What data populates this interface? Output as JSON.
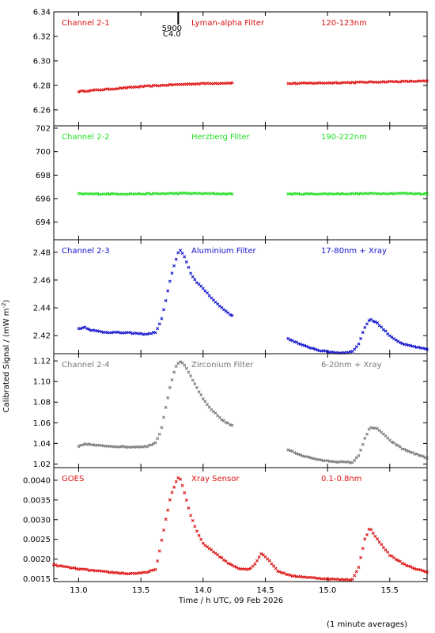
{
  "x_axis": {
    "label": "Time / h UTC, 09 Feb 2026",
    "range": [
      12.8,
      15.8
    ],
    "ticks": [
      13.0,
      13.5,
      14.0,
      14.5,
      15.0,
      15.5
    ],
    "tick_labels": [
      "13.0",
      "13.5",
      "14.0",
      "14.5",
      "15.0",
      "15.5"
    ]
  },
  "y_axis_title": "Calibrated Signal / (mW m",
  "y_axis_title_sup": "-2",
  "y_axis_title_close": ")",
  "footnote": "(1 minute averages)",
  "event_marker": {
    "time": 13.8,
    "label1": "5900",
    "label2": "C4.0"
  },
  "panels": [
    {
      "name": "Channel 2-1",
      "filter": "Lyman-alpha Filter",
      "band": "120-123nm",
      "color": "#dd1111",
      "ylim": [
        6.247,
        6.34
      ],
      "ticks": [
        6.26,
        6.28,
        6.3,
        6.32,
        6.34
      ],
      "tick_labels": [
        "6.26",
        "6.28",
        "6.30",
        "6.32",
        "6.34"
      ],
      "key": "ch21"
    },
    {
      "name": "Channel 2-2",
      "filter": "Herzberg Filter",
      "band": "190-222nm",
      "color": "#22dd22",
      "ylim": [
        692.5,
        702.2
      ],
      "ticks": [
        694,
        696,
        698,
        700,
        702
      ],
      "tick_labels": [
        "694",
        "696",
        "698",
        "700",
        "702"
      ],
      "key": "ch22"
    },
    {
      "name": "Channel 2-3",
      "filter": "Aluminium Filter",
      "band": "17-80nm + Xray",
      "color": "#1111cc",
      "ylim": [
        2.407,
        2.489
      ],
      "ticks": [
        2.42,
        2.44,
        2.46,
        2.48
      ],
      "tick_labels": [
        "2.42",
        "2.44",
        "2.46",
        "2.48"
      ],
      "key": "ch23"
    },
    {
      "name": "Channel 2-4",
      "filter": "Zirconium Filter",
      "band": "6-20nm + Xray",
      "color": "#777777",
      "ylim": [
        1.0165,
        1.127
      ],
      "ticks": [
        1.02,
        1.04,
        1.06,
        1.08,
        1.1,
        1.12
      ],
      "tick_labels": [
        "1.02",
        "1.04",
        "1.06",
        "1.08",
        "1.10",
        "1.12"
      ],
      "key": "ch24"
    },
    {
      "name": "GOES",
      "filter": "Xray Sensor",
      "band": "0.1-0.8nm",
      "color": "#dd1111",
      "ylim": [
        0.00143,
        0.00432
      ],
      "ticks": [
        0.0015,
        0.002,
        0.0025,
        0.003,
        0.0035,
        0.004
      ],
      "tick_labels": [
        "0.0015",
        "0.0020",
        "0.0025",
        "0.0030",
        "0.0035",
        "0.0040"
      ],
      "key": "goes"
    }
  ],
  "chart_data": {
    "type": "scatter",
    "xlabel": "Time / h UTC, 09 Feb 2026",
    "xlim": [
      12.8,
      15.8
    ],
    "gap_hours": [
      14.25,
      14.68
    ],
    "series": [
      {
        "name": "Channel 2-1",
        "key": "ch21",
        "x_range": [
          13.0,
          15.8
        ],
        "points": [
          [
            13.0,
            6.275
          ],
          [
            13.25,
            6.277
          ],
          [
            13.5,
            6.279
          ],
          [
            13.75,
            6.2805
          ],
          [
            14.0,
            6.2815
          ],
          [
            14.25,
            6.282
          ],
          [
            14.68,
            6.2815
          ],
          [
            15.0,
            6.282
          ],
          [
            15.25,
            6.2825
          ],
          [
            15.5,
            6.283
          ],
          [
            15.8,
            6.2835
          ]
        ]
      },
      {
        "name": "Channel 2-2",
        "key": "ch22",
        "x_range": [
          13.0,
          15.8
        ],
        "points": [
          [
            13.0,
            696.4
          ],
          [
            13.5,
            696.4
          ],
          [
            13.85,
            696.45
          ],
          [
            14.25,
            696.4
          ],
          [
            14.68,
            696.4
          ],
          [
            15.0,
            696.4
          ],
          [
            15.6,
            696.45
          ],
          [
            15.8,
            696.4
          ]
        ]
      },
      {
        "name": "Channel 2-3",
        "key": "ch23",
        "x_range": [
          13.0,
          15.8
        ],
        "points": [
          [
            13.0,
            2.425
          ],
          [
            13.05,
            2.426
          ],
          [
            13.1,
            2.424
          ],
          [
            13.2,
            2.4225
          ],
          [
            13.4,
            2.422
          ],
          [
            13.55,
            2.421
          ],
          [
            13.62,
            2.4225
          ],
          [
            13.66,
            2.43
          ],
          [
            13.7,
            2.445
          ],
          [
            13.74,
            2.462
          ],
          [
            13.78,
            2.474
          ],
          [
            13.81,
            2.482
          ],
          [
            13.85,
            2.477
          ],
          [
            13.9,
            2.465
          ],
          [
            13.95,
            2.458
          ],
          [
            14.0,
            2.454
          ],
          [
            14.05,
            2.449
          ],
          [
            14.1,
            2.444
          ],
          [
            14.15,
            2.44
          ],
          [
            14.25,
            2.433
          ],
          [
            14.68,
            2.418
          ],
          [
            14.8,
            2.413
          ],
          [
            14.95,
            2.409
          ],
          [
            15.1,
            2.4075
          ],
          [
            15.2,
            2.4085
          ],
          [
            15.25,
            2.414
          ],
          [
            15.3,
            2.426
          ],
          [
            15.34,
            2.432
          ],
          [
            15.4,
            2.429
          ],
          [
            15.5,
            2.42
          ],
          [
            15.6,
            2.414
          ],
          [
            15.7,
            2.412
          ],
          [
            15.8,
            2.41
          ]
        ]
      },
      {
        "name": "Channel 2-4",
        "key": "ch24",
        "x_range": [
          13.0,
          15.8
        ],
        "points": [
          [
            13.0,
            1.037
          ],
          [
            13.05,
            1.0395
          ],
          [
            13.15,
            1.038
          ],
          [
            13.3,
            1.037
          ],
          [
            13.4,
            1.0365
          ],
          [
            13.55,
            1.037
          ],
          [
            13.62,
            1.041
          ],
          [
            13.66,
            1.052
          ],
          [
            13.7,
            1.075
          ],
          [
            13.74,
            1.098
          ],
          [
            13.78,
            1.114
          ],
          [
            13.81,
            1.12
          ],
          [
            13.85,
            1.116
          ],
          [
            13.9,
            1.105
          ],
          [
            13.95,
            1.094
          ],
          [
            14.0,
            1.083
          ],
          [
            14.05,
            1.075
          ],
          [
            14.1,
            1.069
          ],
          [
            14.15,
            1.063
          ],
          [
            14.25,
            1.056
          ],
          [
            14.68,
            1.034
          ],
          [
            14.8,
            1.028
          ],
          [
            14.95,
            1.0235
          ],
          [
            15.1,
            1.022
          ],
          [
            15.2,
            1.0215
          ],
          [
            15.25,
            1.028
          ],
          [
            15.3,
            1.045
          ],
          [
            15.34,
            1.055
          ],
          [
            15.4,
            1.0545
          ],
          [
            15.5,
            1.043
          ],
          [
            15.6,
            1.035
          ],
          [
            15.7,
            1.03
          ],
          [
            15.8,
            1.026
          ]
        ]
      },
      {
        "name": "GOES",
        "key": "goes",
        "x_range": [
          12.8,
          15.8
        ],
        "points": [
          [
            12.8,
            0.00185
          ],
          [
            13.0,
            0.00175
          ],
          [
            13.2,
            0.00168
          ],
          [
            13.4,
            0.00163
          ],
          [
            13.55,
            0.00166
          ],
          [
            13.62,
            0.00175
          ],
          [
            13.65,
            0.0022
          ],
          [
            13.7,
            0.003
          ],
          [
            13.74,
            0.0036
          ],
          [
            13.78,
            0.00395
          ],
          [
            13.81,
            0.0041
          ],
          [
            13.84,
            0.0038
          ],
          [
            13.9,
            0.0031
          ],
          [
            13.95,
            0.0027
          ],
          [
            14.0,
            0.0024
          ],
          [
            14.1,
            0.00215
          ],
          [
            14.2,
            0.0019
          ],
          [
            14.3,
            0.00175
          ],
          [
            14.38,
            0.00175
          ],
          [
            14.42,
            0.0019
          ],
          [
            14.47,
            0.00215
          ],
          [
            14.52,
            0.002
          ],
          [
            14.6,
            0.0017
          ],
          [
            14.7,
            0.00158
          ],
          [
            14.9,
            0.00152
          ],
          [
            15.1,
            0.00148
          ],
          [
            15.2,
            0.00148
          ],
          [
            15.25,
            0.0018
          ],
          [
            15.3,
            0.0025
          ],
          [
            15.34,
            0.0028
          ],
          [
            15.4,
            0.0025
          ],
          [
            15.5,
            0.0021
          ],
          [
            15.6,
            0.0019
          ],
          [
            15.7,
            0.00175
          ],
          [
            15.8,
            0.00168
          ]
        ]
      }
    ]
  }
}
